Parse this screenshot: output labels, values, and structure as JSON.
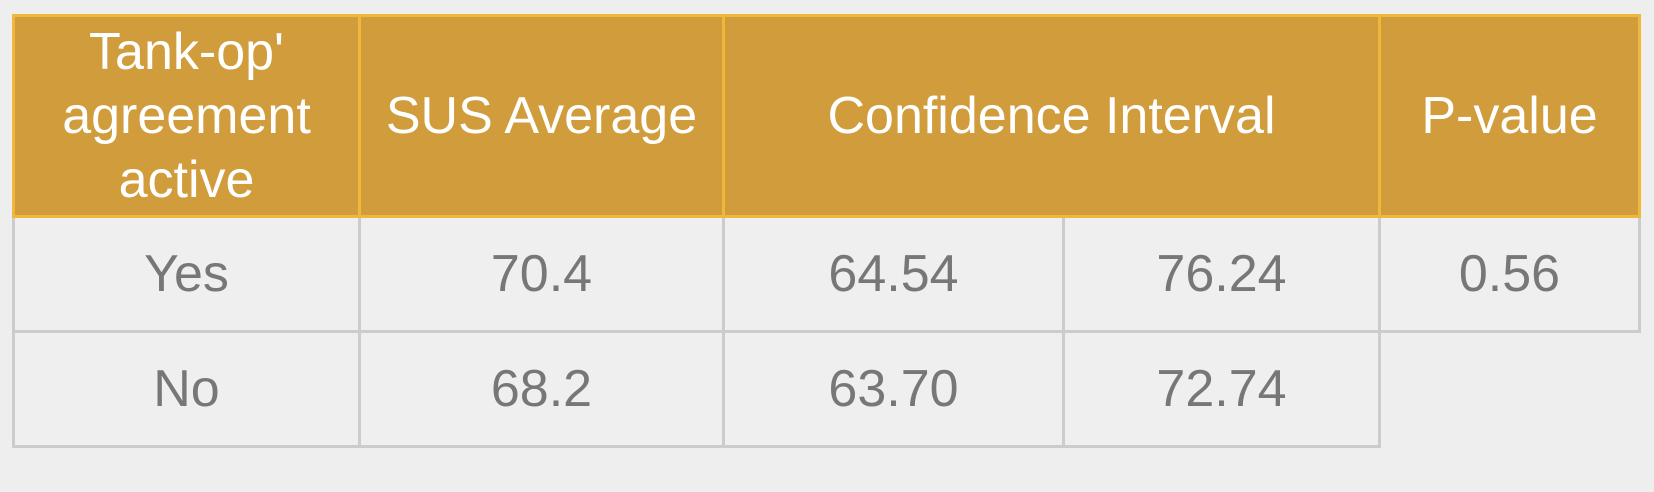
{
  "table": {
    "headers": {
      "agreement": "Tank-op' agreement active",
      "sus_average": "SUS Average",
      "confidence_interval": "Confidence Interval",
      "p_value": "P-value"
    },
    "rows": [
      {
        "agreement": "Yes",
        "sus_average": "70.4",
        "ci_low": "64.54",
        "ci_high": "76.24",
        "p_value": "0.56"
      },
      {
        "agreement": "No",
        "sus_average": "68.2",
        "ci_low": "63.70",
        "ci_high": "72.74",
        "p_value": ""
      }
    ]
  },
  "colors": {
    "header_bg": "#d09c3c",
    "header_border": "#f0b83a",
    "header_text": "#ffffff",
    "cell_bg": "#efefef",
    "cell_border": "#cccccc",
    "cell_text": "#777777"
  }
}
